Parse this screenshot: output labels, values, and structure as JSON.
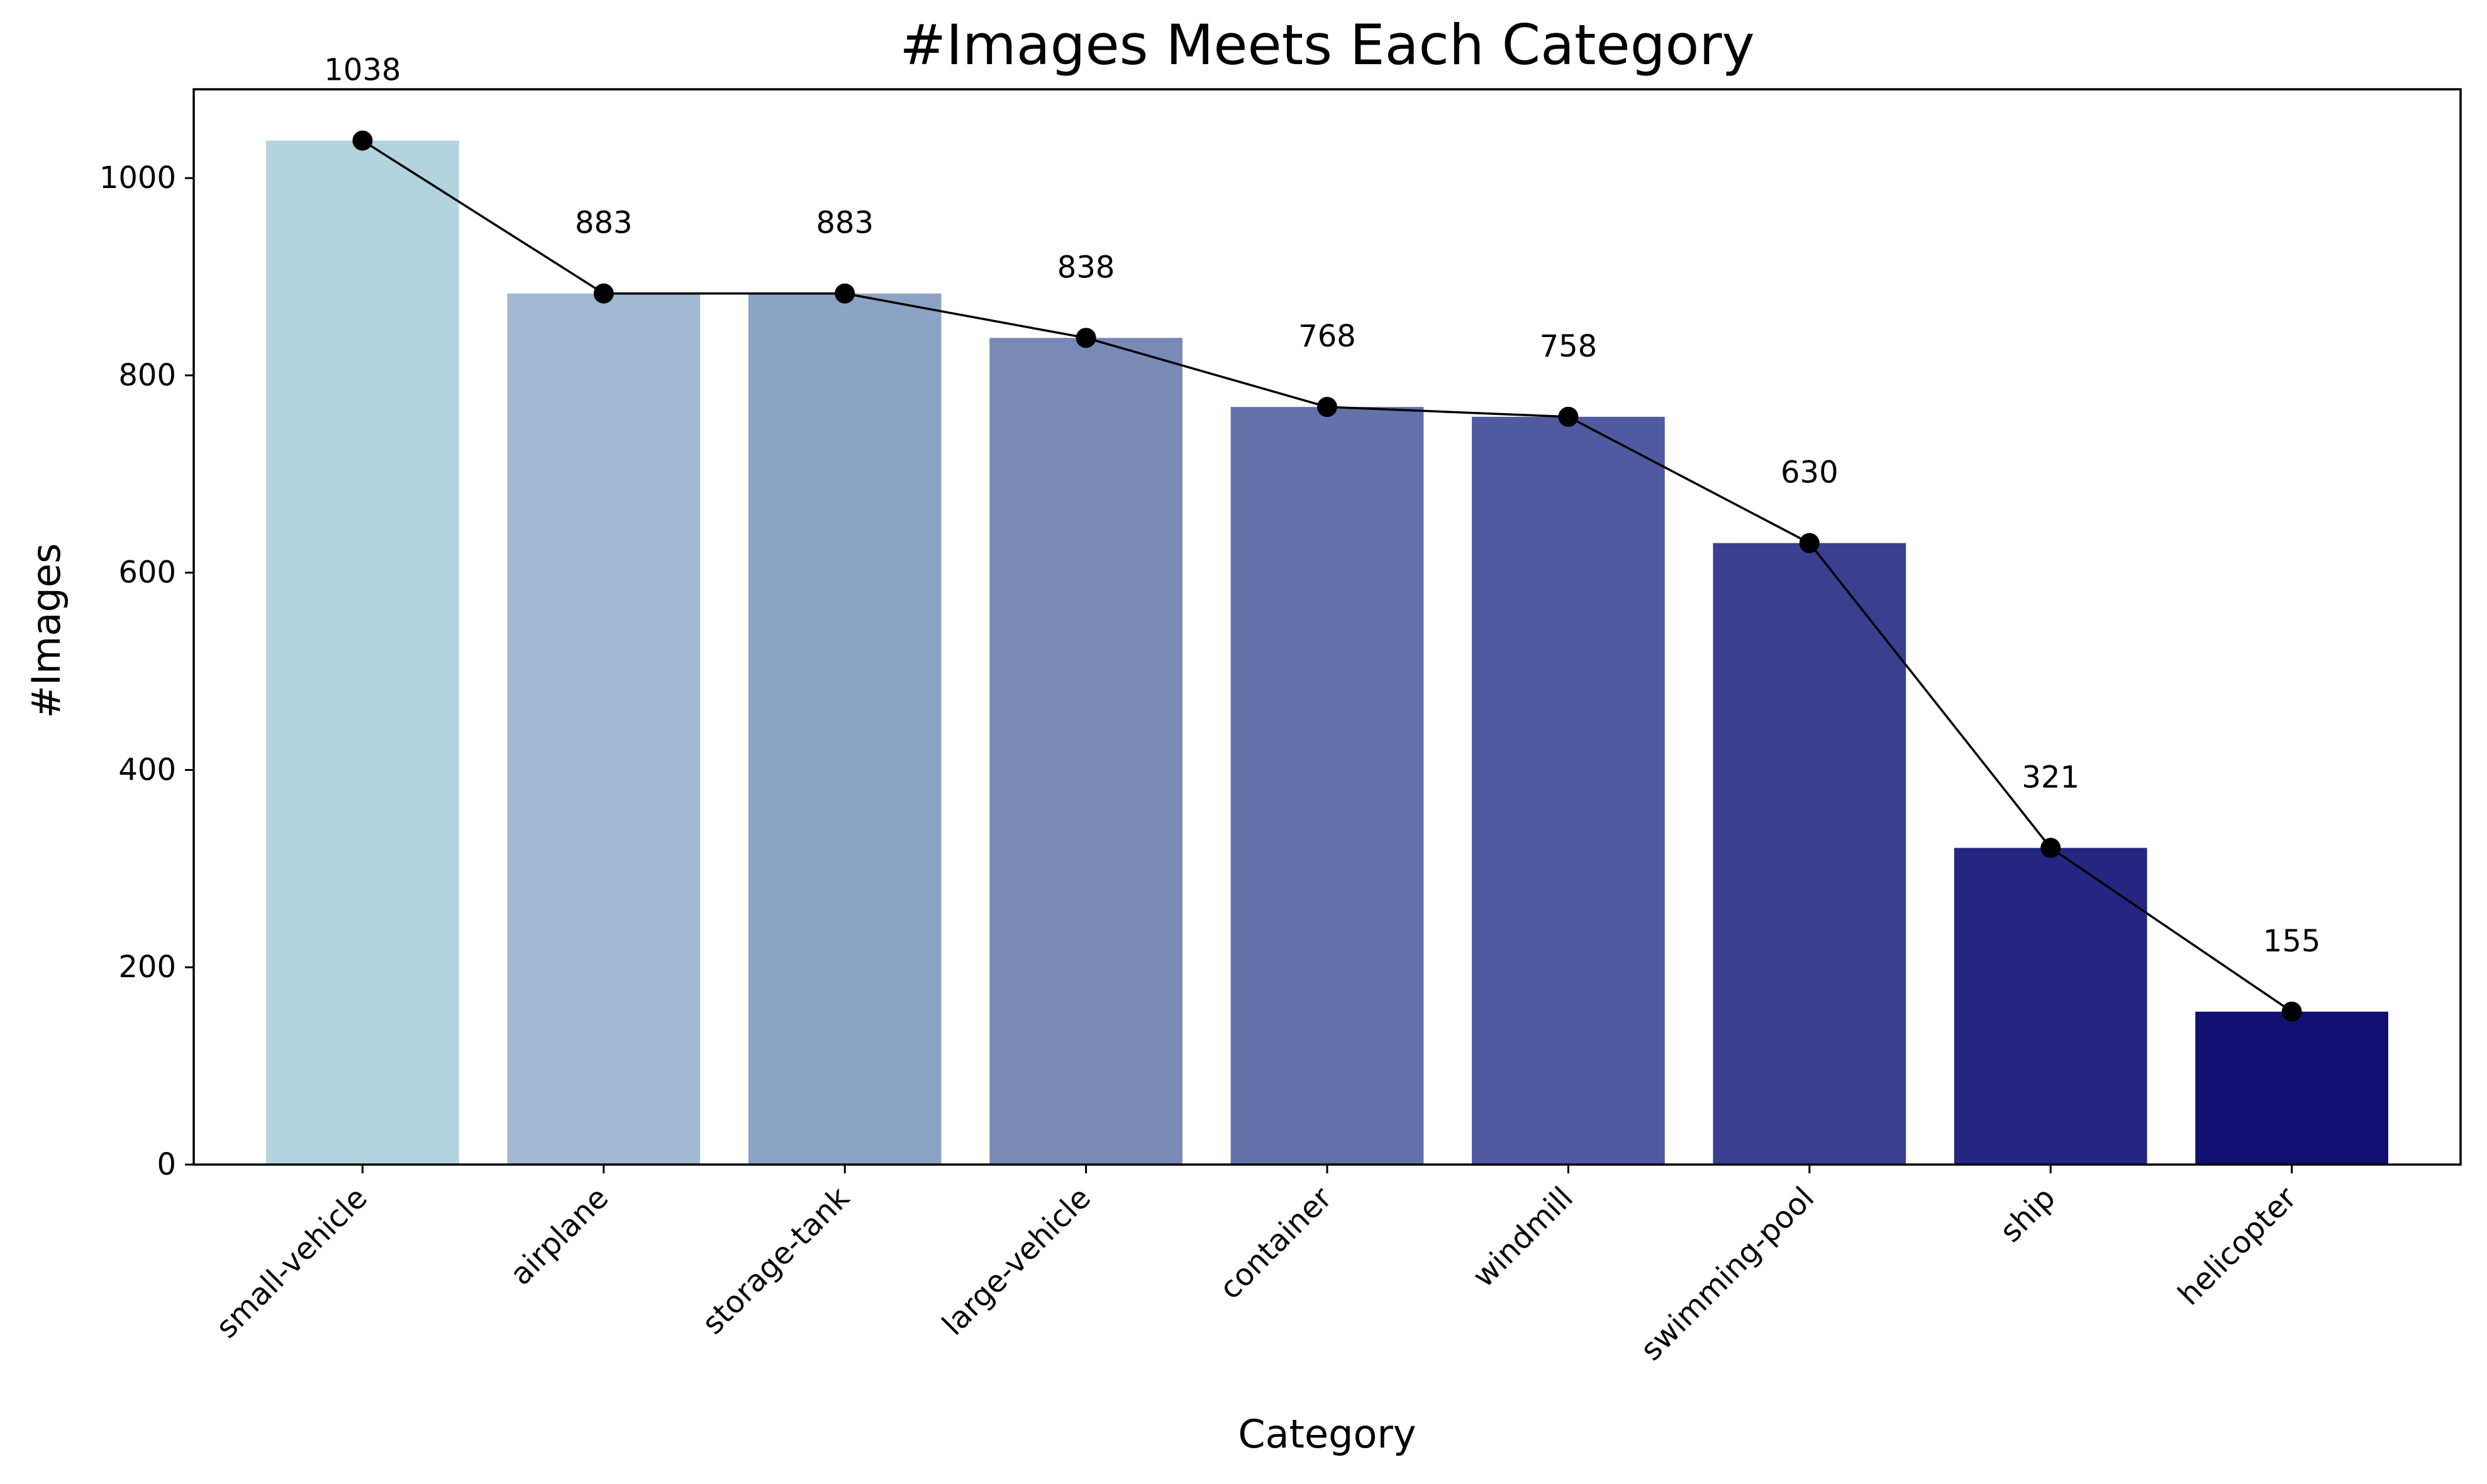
{
  "chart_data": {
    "type": "bar",
    "title": "#Images Meets Each Category",
    "xlabel": "Category",
    "ylabel": "#Images",
    "categories": [
      "small-vehicle",
      "airplane",
      "storage-tank",
      "large-vehicle",
      "container",
      "windmill",
      "swimming-pool",
      "ship",
      "helicopter"
    ],
    "values": [
      1038,
      883,
      883,
      838,
      768,
      758,
      630,
      321,
      155
    ],
    "data_labels": [
      "1038",
      "883",
      "883",
      "838",
      "768",
      "758",
      "630",
      "321",
      "155"
    ],
    "bar_colors": [
      "#b3d4df",
      "#a1bad2",
      "#8ba3c4",
      "#7a8ab7",
      "#6472ab",
      "#4f5aa0",
      "#3a3f8f",
      "#252682",
      "#121171"
    ],
    "overlay_line": {
      "type": "line",
      "color": "#000000",
      "marker": "circle",
      "marker_color": "#000000"
    },
    "ylim": [
      0,
      1090
    ],
    "yticks": [
      0,
      200,
      400,
      600,
      800,
      1000
    ],
    "ytick_labels": [
      "0",
      "200",
      "400",
      "600",
      "800",
      "1000"
    ],
    "grid": false,
    "legend": "none"
  }
}
